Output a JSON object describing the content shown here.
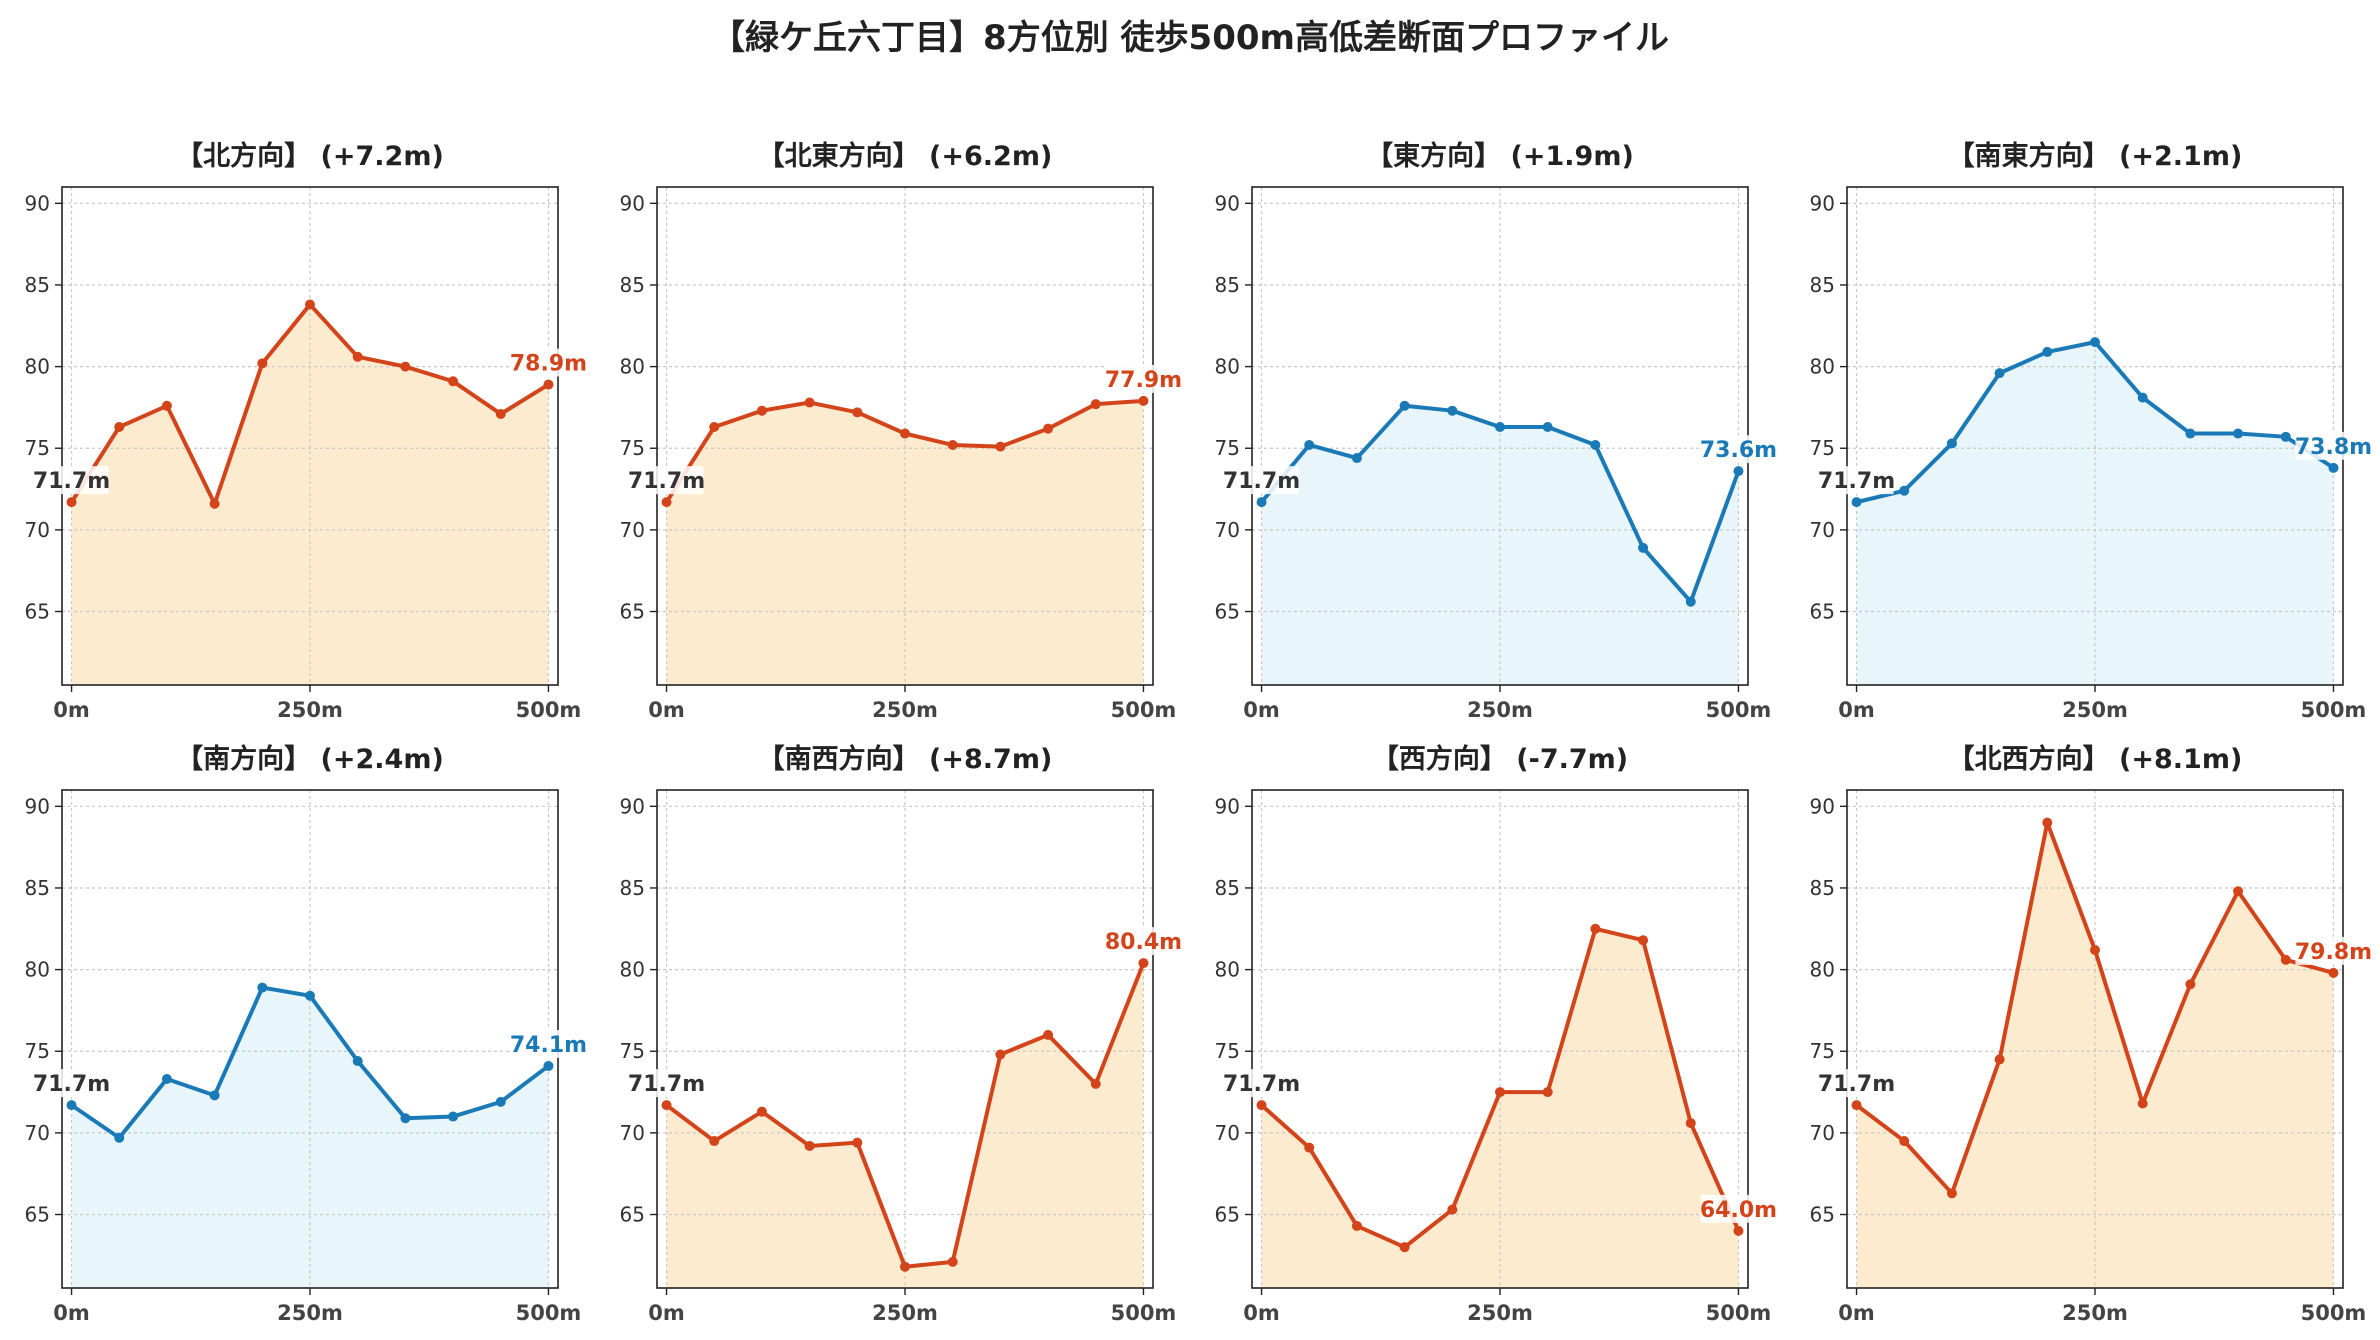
{
  "title": "【緑ケ丘六丁目】8方位別 徒歩500m高低差断面プロファイル",
  "colors": {
    "up": "#d4441a",
    "up_fill": "#fdebd0",
    "down": "#1a7ab8",
    "down_fill": "#e8f6fb"
  },
  "chart_data": [
    {
      "type": "area",
      "title": "【北方向】 (+7.2m)",
      "trend": "up",
      "x": [
        0,
        50,
        100,
        150,
        200,
        250,
        300,
        350,
        400,
        450,
        500
      ],
      "y": [
        71.7,
        76.3,
        77.6,
        71.6,
        80.2,
        83.8,
        80.6,
        80.0,
        79.1,
        77.1,
        78.9
      ],
      "start_label": "71.7m",
      "end_label": "78.9m",
      "xticks": [
        "0m",
        "250m",
        "500m"
      ],
      "yticks": [
        65,
        70,
        75,
        80,
        85,
        90
      ],
      "ylim": [
        60.5,
        91
      ],
      "xlim": [
        -10,
        510
      ],
      "grid": true
    },
    {
      "type": "area",
      "title": "【北東方向】 (+6.2m)",
      "trend": "up",
      "x": [
        0,
        50,
        100,
        150,
        200,
        250,
        300,
        350,
        400,
        450,
        500
      ],
      "y": [
        71.7,
        76.3,
        77.3,
        77.8,
        77.2,
        75.9,
        75.2,
        75.1,
        76.2,
        77.7,
        77.9
      ],
      "start_label": "71.7m",
      "end_label": "77.9m",
      "xticks": [
        "0m",
        "250m",
        "500m"
      ],
      "yticks": [
        65,
        70,
        75,
        80,
        85,
        90
      ],
      "ylim": [
        60.5,
        91
      ],
      "xlim": [
        -10,
        510
      ],
      "grid": true
    },
    {
      "type": "area",
      "title": "【東方向】 (+1.9m)",
      "trend": "down",
      "x": [
        0,
        50,
        100,
        150,
        200,
        250,
        300,
        350,
        400,
        450,
        500
      ],
      "y": [
        71.7,
        75.2,
        74.4,
        77.6,
        77.3,
        76.3,
        76.3,
        75.2,
        68.9,
        65.6,
        73.6
      ],
      "start_label": "71.7m",
      "end_label": "73.6m",
      "xticks": [
        "0m",
        "250m",
        "500m"
      ],
      "yticks": [
        65,
        70,
        75,
        80,
        85,
        90
      ],
      "ylim": [
        60.5,
        91
      ],
      "xlim": [
        -10,
        510
      ],
      "grid": true
    },
    {
      "type": "area",
      "title": "【南東方向】 (+2.1m)",
      "trend": "down",
      "x": [
        0,
        50,
        100,
        150,
        200,
        250,
        300,
        350,
        400,
        450,
        500
      ],
      "y": [
        71.7,
        72.4,
        75.3,
        79.6,
        80.9,
        81.5,
        78.1,
        75.9,
        75.9,
        75.7,
        73.8
      ],
      "start_label": "71.7m",
      "end_label": "73.8m",
      "xticks": [
        "0m",
        "250m",
        "500m"
      ],
      "yticks": [
        65,
        70,
        75,
        80,
        85,
        90
      ],
      "ylim": [
        60.5,
        91
      ],
      "xlim": [
        -10,
        510
      ],
      "grid": true
    },
    {
      "type": "area",
      "title": "【南方向】 (+2.4m)",
      "trend": "down",
      "x": [
        0,
        50,
        100,
        150,
        200,
        250,
        300,
        350,
        400,
        450,
        500
      ],
      "y": [
        71.7,
        69.7,
        73.3,
        72.3,
        78.9,
        78.4,
        74.4,
        70.9,
        71.0,
        71.9,
        74.1
      ],
      "start_label": "71.7m",
      "end_label": "74.1m",
      "xticks": [
        "0m",
        "250m",
        "500m"
      ],
      "yticks": [
        65,
        70,
        75,
        80,
        85,
        90
      ],
      "ylim": [
        60.5,
        91
      ],
      "xlim": [
        -10,
        510
      ],
      "grid": true
    },
    {
      "type": "area",
      "title": "【南西方向】 (+8.7m)",
      "trend": "up",
      "x": [
        0,
        50,
        100,
        150,
        200,
        250,
        300,
        350,
        400,
        450,
        500
      ],
      "y": [
        71.7,
        69.5,
        71.3,
        69.2,
        69.4,
        61.8,
        62.1,
        74.8,
        76.0,
        73.0,
        80.4
      ],
      "start_label": "71.7m",
      "end_label": "80.4m",
      "xticks": [
        "0m",
        "250m",
        "500m"
      ],
      "yticks": [
        65,
        70,
        75,
        80,
        85,
        90
      ],
      "ylim": [
        60.5,
        91
      ],
      "xlim": [
        -10,
        510
      ],
      "grid": true
    },
    {
      "type": "area",
      "title": "【西方向】 (-7.7m)",
      "trend": "up",
      "x": [
        0,
        50,
        100,
        150,
        200,
        250,
        300,
        350,
        400,
        450,
        500
      ],
      "y": [
        71.7,
        69.1,
        64.3,
        63.0,
        65.3,
        72.5,
        72.5,
        82.5,
        81.8,
        70.6,
        64.0
      ],
      "start_label": "71.7m",
      "end_label": "64.0m",
      "xticks": [
        "0m",
        "250m",
        "500m"
      ],
      "yticks": [
        65,
        70,
        75,
        80,
        85,
        90
      ],
      "ylim": [
        60.5,
        91
      ],
      "xlim": [
        -10,
        510
      ],
      "grid": true
    },
    {
      "type": "area",
      "title": "【北西方向】 (+8.1m)",
      "trend": "up",
      "x": [
        0,
        50,
        100,
        150,
        200,
        250,
        300,
        350,
        400,
        450,
        500
      ],
      "y": [
        71.7,
        69.5,
        66.3,
        74.5,
        89.0,
        81.2,
        71.8,
        79.1,
        84.8,
        80.6,
        79.8
      ],
      "start_label": "71.7m",
      "end_label": "79.8m",
      "xticks": [
        "0m",
        "250m",
        "500m"
      ],
      "yticks": [
        65,
        70,
        75,
        80,
        85,
        90
      ],
      "ylim": [
        60.5,
        91
      ],
      "xlim": [
        -10,
        510
      ],
      "grid": true
    }
  ]
}
